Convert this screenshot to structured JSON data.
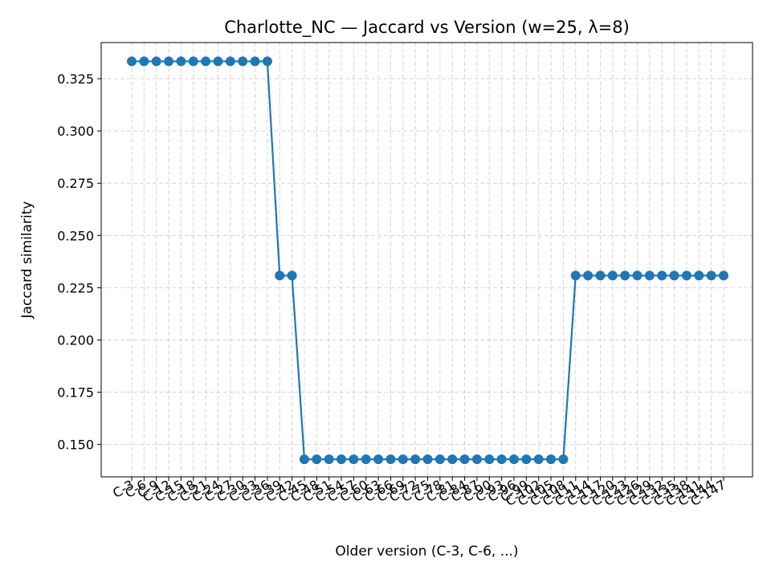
{
  "chart_data": {
    "type": "line",
    "title": "Charlotte_NC — Jaccard vs Version (w=25, λ=8)",
    "xlabel": "Older version (C-3, C-6, ...)",
    "ylabel": "Jaccard similarity",
    "ylim": [
      0.1345,
      0.3423
    ],
    "yticks": [
      0.15,
      0.175,
      0.2,
      0.225,
      0.25,
      0.275,
      0.3,
      0.325
    ],
    "ytick_labels": [
      "0.150",
      "0.175",
      "0.200",
      "0.225",
      "0.250",
      "0.275",
      "0.300",
      "0.325"
    ],
    "grid": true,
    "line_color": "#1f77b4",
    "marker": "circle",
    "categories": [
      "C-3",
      "C-6",
      "C-9",
      "C-12",
      "C-15",
      "C-18",
      "C-21",
      "C-24",
      "C-27",
      "C-30",
      "C-33",
      "C-36",
      "C-39",
      "C-42",
      "C-45",
      "C-48",
      "C-51",
      "C-54",
      "C-57",
      "C-60",
      "C-63",
      "C-66",
      "C-69",
      "C-72",
      "C-75",
      "C-78",
      "C-81",
      "C-84",
      "C-87",
      "C-90",
      "C-93",
      "C-96",
      "C-99",
      "C-102",
      "C-105",
      "C-108",
      "C-111",
      "C-114",
      "C-117",
      "C-120",
      "C-123",
      "C-126",
      "C-129",
      "C-132",
      "C-135",
      "C-138",
      "C-141",
      "C-144",
      "C-147"
    ],
    "series": [
      {
        "values": [
          0.3333,
          0.3333,
          0.3333,
          0.3333,
          0.3333,
          0.3333,
          0.3333,
          0.3333,
          0.3333,
          0.3333,
          0.3333,
          0.3333,
          0.2308,
          0.2308,
          0.1429,
          0.1429,
          0.1429,
          0.1429,
          0.1429,
          0.1429,
          0.1429,
          0.1429,
          0.1429,
          0.1429,
          0.1429,
          0.1429,
          0.1429,
          0.1429,
          0.1429,
          0.1429,
          0.1429,
          0.1429,
          0.1429,
          0.1429,
          0.1429,
          0.1429,
          0.2308,
          0.2308,
          0.2308,
          0.2308,
          0.2308,
          0.2308,
          0.2308,
          0.2308,
          0.2308,
          0.2308,
          0.2308,
          0.2308,
          0.2308
        ]
      }
    ]
  }
}
